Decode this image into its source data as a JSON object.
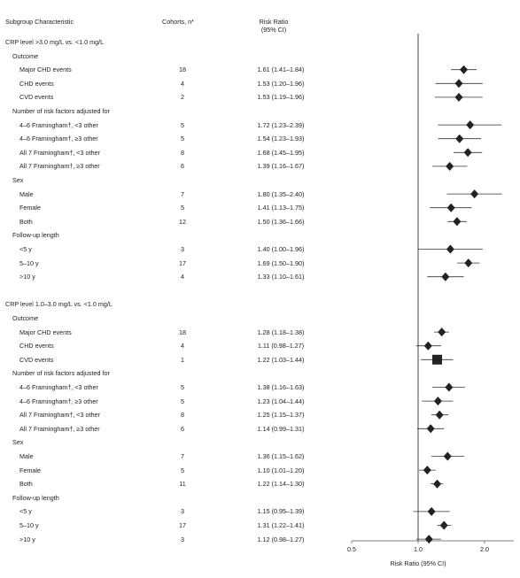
{
  "header": {
    "subgroup": "Subgroup Characteristic",
    "cohorts": "Cohorts, n*",
    "rr_line1": "Risk Ratio",
    "rr_line2": "(95% CI)"
  },
  "chart_data": {
    "type": "forest",
    "xlabel": "Risk Ratio (95% CI)",
    "xticks": [
      0.5,
      1.0,
      2.0
    ],
    "xtick_labels": [
      "0.5",
      "1.0",
      "2.0"
    ],
    "xlim": [
      0.5,
      2.4
    ],
    "log_scale": true,
    "reference_line": 1.0,
    "rows": [
      {
        "kind": "section",
        "label": "CRP level >3.0 mg/L vs. <1.0 mg/L"
      },
      {
        "kind": "group",
        "label": "Outcome"
      },
      {
        "kind": "item",
        "label": "Major CHD events",
        "n": "18",
        "ci_text": "1.61 (1.41–1.84)",
        "rr": 1.61,
        "lo": 1.41,
        "hi": 1.84,
        "marker": "diamond"
      },
      {
        "kind": "item",
        "label": "CHD events",
        "n": "4",
        "ci_text": "1.53 (1.20–1.96)",
        "rr": 1.53,
        "lo": 1.2,
        "hi": 1.96,
        "marker": "diamond"
      },
      {
        "kind": "item",
        "label": "CVD events",
        "n": "2",
        "ci_text": "1.53 (1.19–1.96)",
        "rr": 1.53,
        "lo": 1.19,
        "hi": 1.96,
        "marker": "diamond"
      },
      {
        "kind": "group",
        "label": "Number of risk factors adjusted for"
      },
      {
        "kind": "item",
        "label": "4–6 Framingham†, <3 other",
        "n": "5",
        "ci_text": "1.72 (1.23–2.39)",
        "rr": 1.72,
        "lo": 1.23,
        "hi": 2.39,
        "marker": "diamond"
      },
      {
        "kind": "item",
        "label": "4–6 Framingham†, ≥3 other",
        "n": "5",
        "ci_text": "1.54 (1.23–1.93)",
        "rr": 1.54,
        "lo": 1.23,
        "hi": 1.93,
        "marker": "diamond"
      },
      {
        "kind": "item",
        "label": "All 7 Framingham†, <3 other",
        "n": "8",
        "ci_text": "1.68 (1.45–1.95)",
        "rr": 1.68,
        "lo": 1.45,
        "hi": 1.95,
        "marker": "diamond"
      },
      {
        "kind": "item",
        "label": "All 7 Framingham†, ≥3 other",
        "n": "6",
        "ci_text": "1.39 (1.16–1.67)",
        "rr": 1.39,
        "lo": 1.16,
        "hi": 1.67,
        "marker": "diamond"
      },
      {
        "kind": "group",
        "label": "Sex"
      },
      {
        "kind": "item",
        "label": "Male",
        "n": "7",
        "ci_text": "1.80 (1.35–2.40)",
        "rr": 1.8,
        "lo": 1.35,
        "hi": 2.4,
        "marker": "diamond"
      },
      {
        "kind": "item",
        "label": "Female",
        "n": "5",
        "ci_text": "1.41 (1.13–1.75)",
        "rr": 1.41,
        "lo": 1.13,
        "hi": 1.75,
        "marker": "diamond"
      },
      {
        "kind": "item",
        "label": "Both",
        "n": "12",
        "ci_text": "1.50 (1.36–1.66)",
        "rr": 1.5,
        "lo": 1.36,
        "hi": 1.66,
        "marker": "diamond"
      },
      {
        "kind": "group",
        "label": "Follow-up length"
      },
      {
        "kind": "item",
        "label": "<5 y",
        "n": "3",
        "ci_text": "1.40 (1.00–1.96)",
        "rr": 1.4,
        "lo": 1.0,
        "hi": 1.96,
        "marker": "diamond"
      },
      {
        "kind": "item",
        "label": "5–10 y",
        "n": "17",
        "ci_text": "1.69 (1.50–1.90)",
        "rr": 1.69,
        "lo": 1.5,
        "hi": 1.9,
        "marker": "diamond"
      },
      {
        "kind": "item",
        "label": ">10 y",
        "n": "4",
        "ci_text": "1.33 (1.10–1.61)",
        "rr": 1.33,
        "lo": 1.1,
        "hi": 1.61,
        "marker": "diamond"
      },
      {
        "kind": "spacer"
      },
      {
        "kind": "section",
        "label": "CRP level 1.0–3.0 mg/L vs. <1.0 mg/L"
      },
      {
        "kind": "group",
        "label": "Outcome"
      },
      {
        "kind": "item",
        "label": "Major CHD events",
        "n": "18",
        "ci_text": "1.28 (1.18–1.38)",
        "rr": 1.28,
        "lo": 1.18,
        "hi": 1.38,
        "marker": "diamond"
      },
      {
        "kind": "item",
        "label": "CHD events",
        "n": "4",
        "ci_text": "1.11 (0.98–1.27)",
        "rr": 1.11,
        "lo": 0.98,
        "hi": 1.27,
        "marker": "diamond"
      },
      {
        "kind": "item",
        "label": "CVD events",
        "n": "1",
        "ci_text": "1.22 (1.03–1.44)",
        "rr": 1.22,
        "lo": 1.03,
        "hi": 1.44,
        "marker": "square"
      },
      {
        "kind": "group",
        "label": "Number of risk factors adjusted for"
      },
      {
        "kind": "item",
        "label": "4–6 Framingham†, <3 other",
        "n": "5",
        "ci_text": "1.38 (1.16–1.63)",
        "rr": 1.38,
        "lo": 1.16,
        "hi": 1.63,
        "marker": "diamond"
      },
      {
        "kind": "item",
        "label": "4–6 Framingham†, ≥3 other",
        "n": "5",
        "ci_text": "1.23 (1.04–1.44)",
        "rr": 1.23,
        "lo": 1.04,
        "hi": 1.44,
        "marker": "diamond"
      },
      {
        "kind": "item",
        "label": "All 7 Framingham†, <3 other",
        "n": "8",
        "ci_text": "1.25 (1.15–1.37)",
        "rr": 1.25,
        "lo": 1.15,
        "hi": 1.37,
        "marker": "diamond"
      },
      {
        "kind": "item",
        "label": "All 7 Framingham†, ≥3 other",
        "n": "6",
        "ci_text": "1.14 (0.99–1.31)",
        "rr": 1.14,
        "lo": 0.99,
        "hi": 1.31,
        "marker": "diamond"
      },
      {
        "kind": "group",
        "label": "Sex"
      },
      {
        "kind": "item",
        "label": "Male",
        "n": "7",
        "ci_text": "1.36 (1.15–1.62)",
        "rr": 1.36,
        "lo": 1.15,
        "hi": 1.62,
        "marker": "diamond"
      },
      {
        "kind": "item",
        "label": "Female",
        "n": "5",
        "ci_text": "1.10 (1.01–1.20)",
        "rr": 1.1,
        "lo": 1.01,
        "hi": 1.2,
        "marker": "diamond"
      },
      {
        "kind": "item",
        "label": "Both",
        "n": "11",
        "ci_text": "1.22 (1.14–1.30)",
        "rr": 1.22,
        "lo": 1.14,
        "hi": 1.3,
        "marker": "diamond"
      },
      {
        "kind": "group",
        "label": "Follow-up length"
      },
      {
        "kind": "item",
        "label": "<5 y",
        "n": "3",
        "ci_text": "1.15 (0.95–1.39)",
        "rr": 1.15,
        "lo": 0.95,
        "hi": 1.39,
        "marker": "diamond"
      },
      {
        "kind": "item",
        "label": "5–10 y",
        "n": "17",
        "ci_text": "1.31 (1.22–1.41)",
        "rr": 1.31,
        "lo": 1.22,
        "hi": 1.41,
        "marker": "diamond"
      },
      {
        "kind": "item",
        "label": ">10 y",
        "n": "3",
        "ci_text": "1.12 (0.98–1.27)",
        "rr": 1.12,
        "lo": 0.98,
        "hi": 1.27,
        "marker": "diamond"
      }
    ]
  }
}
